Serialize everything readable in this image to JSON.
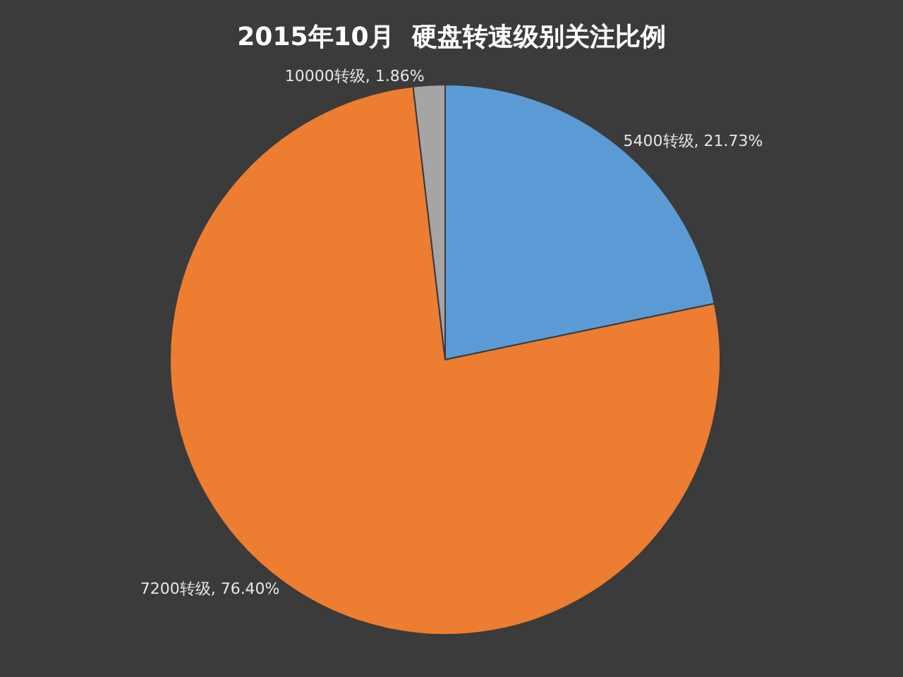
{
  "chart_data": {
    "type": "pie",
    "title": "2015年10月  硬盘转速级别关注比例",
    "categories": [
      "5400转级",
      "7200转级",
      "10000转级"
    ],
    "values": [
      21.73,
      76.4,
      1.86
    ],
    "value_labels": [
      "21.73%",
      "76.40%",
      "1.86%"
    ],
    "colors": [
      "#5b9bd5",
      "#ed7d31",
      "#a5a5a5"
    ],
    "legend": false
  }
}
